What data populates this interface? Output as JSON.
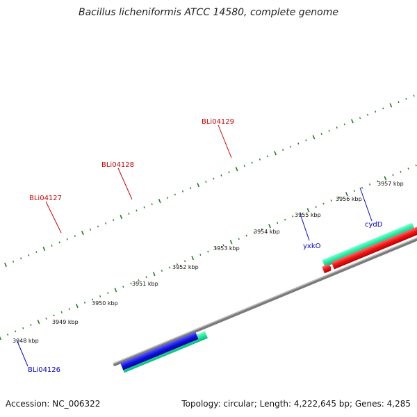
{
  "title": "Bacillus licheniformis ATCC 14580, complete genome",
  "footer": {
    "accession": "Accession: NC_006322",
    "summary": "Topology: circular; Length: 4,222,645 bp; Genes: 4,285"
  },
  "colors": {
    "backbone": "#8a8a8a",
    "tick": "#1e7a1e",
    "label_forward": "#cc0000",
    "label_reverse": "#0000cc",
    "leader": "#d40000",
    "leader_reverse": "#0000cc"
  },
  "scale": {
    "ticks": [
      {
        "label": "3948 kbp"
      },
      {
        "label": "3949 kbp"
      },
      {
        "label": "3950 kbp"
      },
      {
        "label": "3951 kbp"
      },
      {
        "label": "3952 kbp"
      },
      {
        "label": "3953 kbp"
      },
      {
        "label": "3954 kbp"
      },
      {
        "label": "3955 kbp"
      },
      {
        "label": "3956 kbp"
      },
      {
        "label": "3957 kbp"
      }
    ]
  },
  "features": [
    {
      "name": "BLi04127",
      "strand": "forward",
      "color": "#ee1111"
    },
    {
      "name": "BLi04128",
      "strand": "forward",
      "color": "#ee1111"
    },
    {
      "name": "BLi04129",
      "strand": "forward",
      "color": "#ee1111"
    },
    {
      "name": "BLi04126",
      "strand": "reverse",
      "color": "#1111dd"
    },
    {
      "name": "yxkO",
      "strand": "reverse",
      "color": "#1111dd"
    },
    {
      "name": "cydD",
      "strand": "reverse",
      "color": "#1111dd"
    }
  ]
}
